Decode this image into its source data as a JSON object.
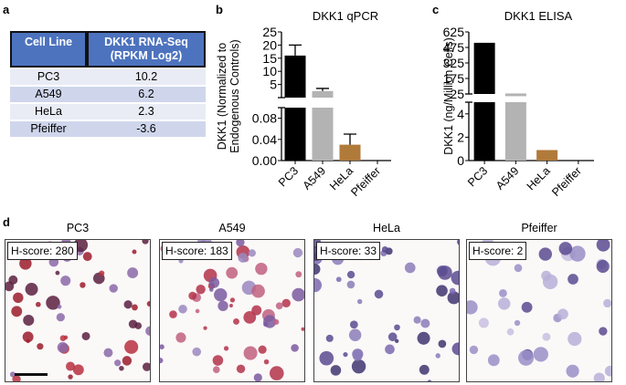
{
  "panel_labels": [
    "a",
    "b",
    "c",
    "d"
  ],
  "table": {
    "headers": [
      "Cell Line",
      "DKK1 RNA-Seq (RPKM Log2)"
    ],
    "rows": [
      [
        "PC3",
        "10.2"
      ],
      [
        "A549",
        "6.2"
      ],
      [
        "HeLa",
        "2.3"
      ],
      [
        "Pfeiffer",
        "-3.6"
      ]
    ]
  },
  "chart_data": [
    {
      "type": "bar",
      "title": "DKK1 qPCR",
      "ylabel": "DKK1 (Normalized to Endogenous Controls)",
      "categories": [
        "PC3",
        "A549",
        "HeLa",
        "Pfeiffer"
      ],
      "values": [
        16.0,
        2.5,
        0.03,
        0.0
      ],
      "errors": [
        4.0,
        1.0,
        0.02,
        0
      ],
      "colors": [
        "#000000",
        "#b3b3b3",
        "#b07a3a",
        "#000000"
      ],
      "broken_axis": {
        "upper_ticks": [
          "25",
          "20",
          "15",
          "10",
          "5"
        ],
        "upper_range": [
          0,
          25
        ],
        "lower_ticks": [
          "0.08",
          "0.04",
          "0.00"
        ],
        "lower_range": [
          0,
          0.1
        ]
      }
    },
    {
      "type": "bar",
      "title": "DKK1 ELISA",
      "ylabel": "DKK1 (ng/Million Cells)",
      "categories": [
        "PC3",
        "A549",
        "HeLa",
        "Pfeiffer"
      ],
      "values": [
        520,
        30,
        0.9,
        0
      ],
      "colors": [
        "#000000",
        "#b3b3b3",
        "#b07a3a",
        "#000000"
      ],
      "broken_axis": {
        "upper_ticks": [
          "625",
          "475",
          "325",
          "175",
          "25"
        ],
        "upper_range": [
          25,
          625
        ],
        "lower_ticks": [
          "4",
          "2",
          "0"
        ],
        "lower_range": [
          0,
          5
        ]
      }
    }
  ],
  "images": [
    {
      "title": "PC3",
      "hscore": "H-score: 280"
    },
    {
      "title": "A549",
      "hscore": "H-score: 183"
    },
    {
      "title": "HeLa",
      "hscore": "H-score: 33"
    },
    {
      "title": "Pfeiffer",
      "hscore": "H-score: 2"
    }
  ]
}
